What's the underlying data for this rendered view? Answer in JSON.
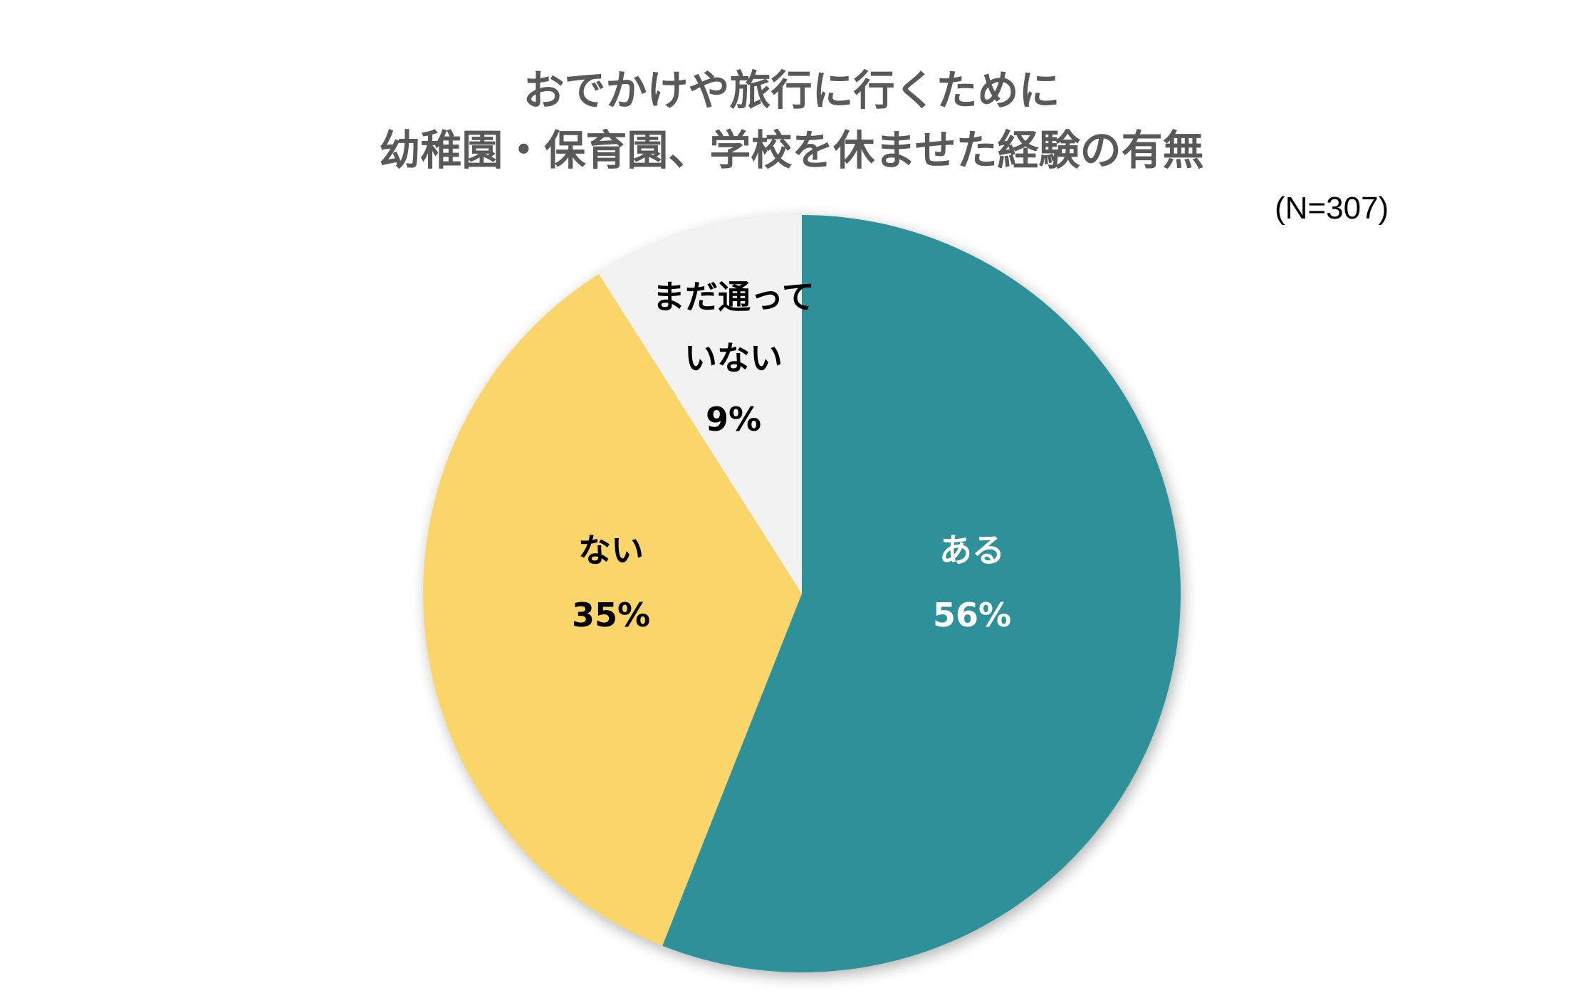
{
  "title": {
    "line1": "おでかけや旅行に行くために",
    "line2": "幼稚園・保育園、学校を休ませた経験の有無"
  },
  "sample_size": "(N=307)",
  "slices": [
    {
      "label": "ある",
      "percent": "56%",
      "color": "#2F9199",
      "text_color": "#FFFFFF"
    },
    {
      "label": "ない",
      "percent": "35%",
      "color": "#FAD56B",
      "text_color": "#000000"
    },
    {
      "label_line1": "まだ通って",
      "label_line2": "いない",
      "percent": "9%",
      "color": "#F2F2F2",
      "text_color": "#000000"
    }
  ],
  "chart_data": {
    "type": "pie",
    "title": "おでかけや旅行に行くために 幼稚園・保育園、学校を休ませた経験の有無",
    "subtitle": "(N=307)",
    "categories": [
      "ある",
      "ない",
      "まだ通っていない"
    ],
    "values": [
      56,
      35,
      9
    ],
    "unit": "%",
    "colors": [
      "#2F9199",
      "#FAD56B",
      "#F2F2F2"
    ],
    "start_angle": "12 o'clock, clockwise",
    "legend": "none (data labels inside slices)"
  }
}
